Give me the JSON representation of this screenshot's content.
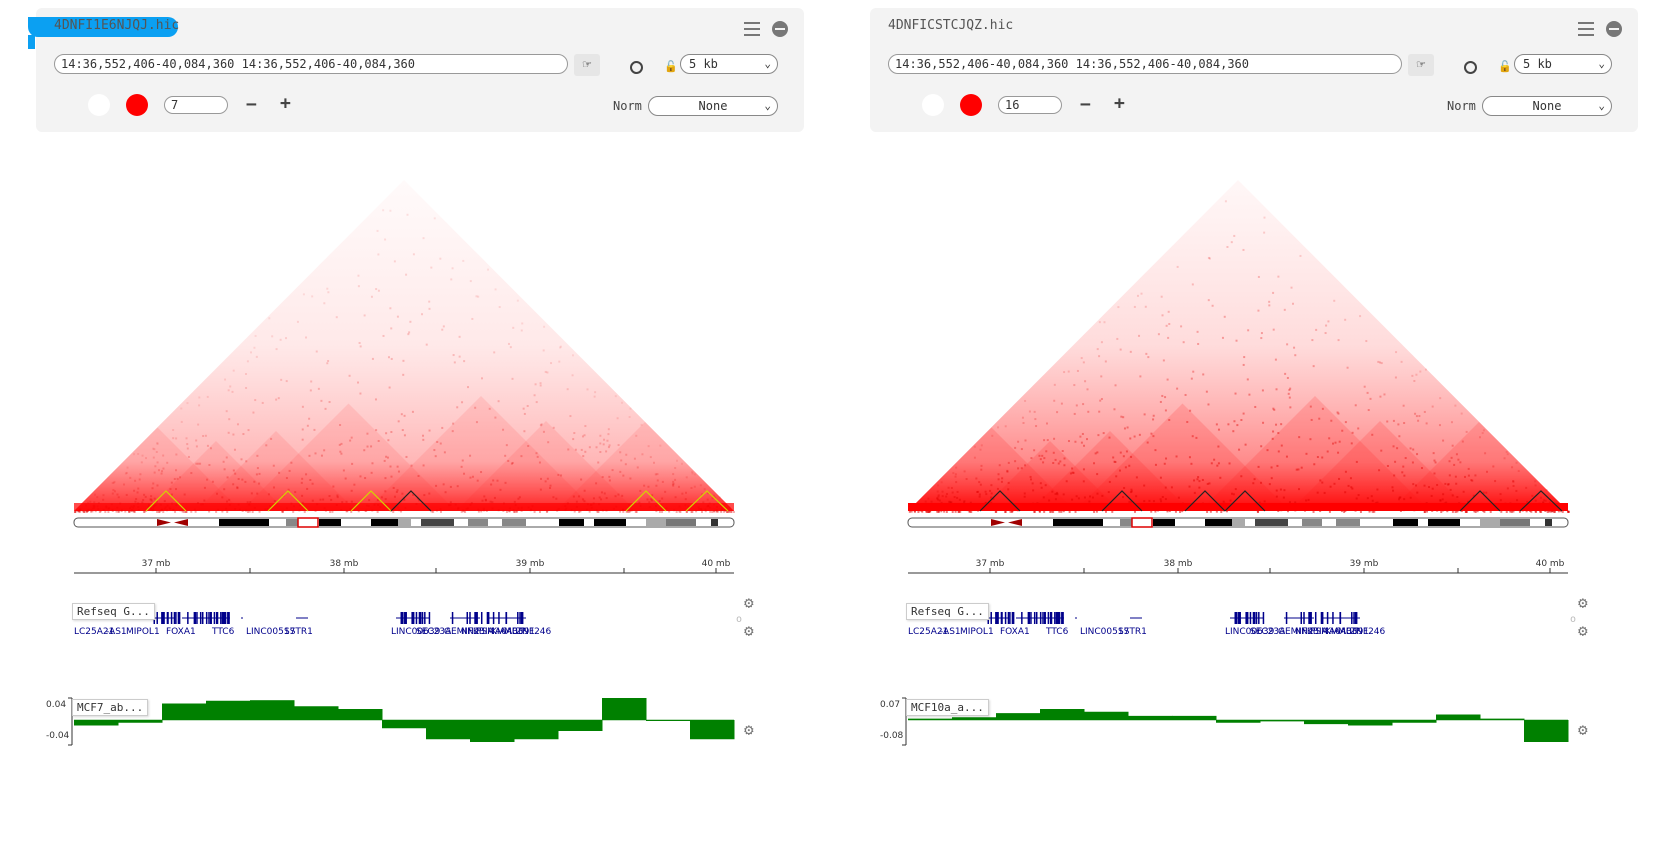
{
  "colors": {
    "accent": "#0ba0f2",
    "contact": "#ff0000",
    "gene": "#00008b",
    "wig": "#008000"
  },
  "browsers": [
    {
      "title": "4DNFI1E6NJQJ.hic",
      "locus": "14:36,552,406-40,084,360 14:36,552,406-40,084,360",
      "resolution": "5 kb",
      "norm_label": "Norm",
      "norm_value": "None",
      "color_scale": "7",
      "ruler_ticks": [
        "37 mb",
        "38 mb",
        "39 mb",
        "40 mb"
      ],
      "gene_track_label": "Refseq G...",
      "gene_labels": [
        "LC25A21",
        "-AS1",
        "MIPOL1",
        "FOXA1",
        "TTC6",
        "LINC00517",
        "SSTR1",
        "LINC00639",
        "SEC23A",
        "GEMIN2",
        "NFKBIA",
        "PSMA6",
        "KIAA0391",
        "MBIP",
        "ZNF246"
      ],
      "wig_track_label": "MCF7_ab...",
      "wig_max": "0.04",
      "wig_min": "-0.04",
      "wig_values": [
        -0.01,
        -0.005,
        0.03,
        0.035,
        0.036,
        0.025,
        0.02,
        -0.015,
        -0.035,
        -0.04,
        -0.035,
        -0.02,
        0.04,
        0.0,
        -0.035
      ],
      "domain_colors": [
        "#d4d400",
        "#d4d400",
        "#d4d400",
        "#222222",
        "#d4d400",
        "#d4d400"
      ]
    },
    {
      "title": "4DNFICSTCJQZ.hic",
      "locus": "14:36,552,406-40,084,360 14:36,552,406-40,084,360",
      "resolution": "5 kb",
      "norm_label": "Norm",
      "norm_value": "None",
      "color_scale": "16",
      "ruler_ticks": [
        "37 mb",
        "38 mb",
        "39 mb",
        "40 mb"
      ],
      "gene_track_label": "Refseq G...",
      "gene_labels": [
        "LC25A21",
        "-AS1",
        "MIPOL1",
        "FOXA1",
        "TTC6",
        "LINC00517",
        "SSTR1",
        "LINC00639",
        "SEC23A",
        "GEMIN2",
        "NFKBIA",
        "PSMA6",
        "KIAA0391",
        "MBIP",
        "ZNF246"
      ],
      "wig_track_label": "MCF10a_a...",
      "wig_max": "0.07",
      "wig_min": "-0.08",
      "wig_values": [
        0.005,
        0.01,
        0.025,
        0.04,
        0.03,
        0.015,
        0.015,
        -0.01,
        -0.005,
        -0.015,
        -0.02,
        -0.01,
        0.02,
        0.005,
        -0.08
      ],
      "domain_colors": [
        "#222222",
        "#222222",
        "#222222",
        "#222222",
        "#222222",
        "#222222"
      ]
    }
  ]
}
